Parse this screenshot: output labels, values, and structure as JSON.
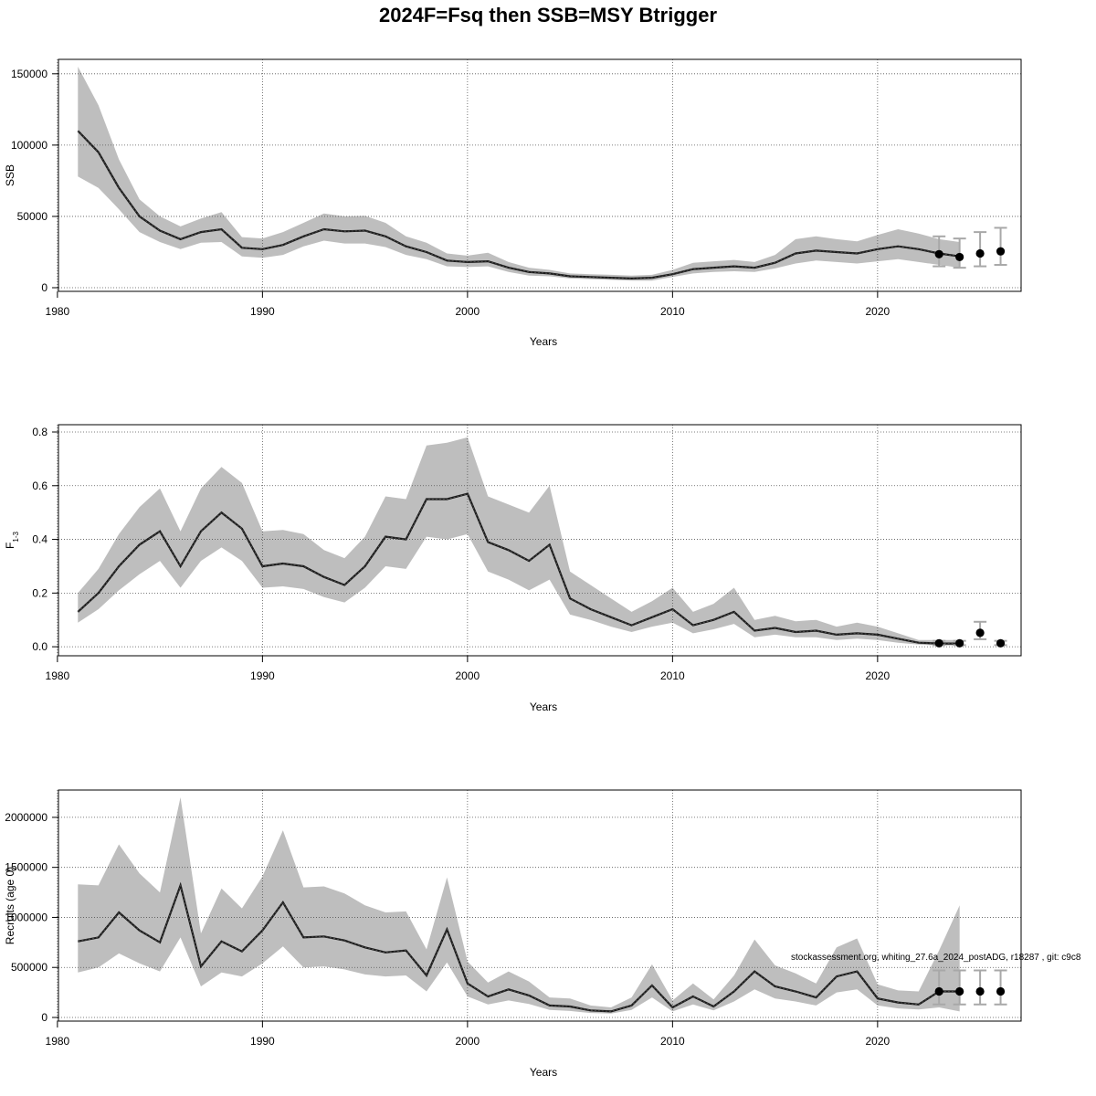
{
  "title": "2024F=Fsq then SSB=MSY Btrigger",
  "footnote": "stockassessment.org, whiting_27.6a_2024_postADG, r18287 , git: c9c8",
  "colors": {
    "band": "#bebebe",
    "line": "#1a1a1a",
    "grid": "#555555",
    "forecast_whisker": "#a8a8a8"
  },
  "chart_data": [
    {
      "type": "line",
      "ylabel": "SSB",
      "xlabel": "Years",
      "xlim": [
        1981,
        2026
      ],
      "ylim": [
        0,
        155000
      ],
      "xticks": [
        1980,
        1990,
        2000,
        2010,
        2020
      ],
      "yticks": [
        0,
        50000,
        100000,
        150000
      ],
      "grid": true,
      "x": [
        1981,
        1982,
        1983,
        1984,
        1985,
        1986,
        1987,
        1988,
        1989,
        1990,
        1991,
        1992,
        1993,
        1994,
        1995,
        1996,
        1997,
        1998,
        1999,
        2000,
        2001,
        2002,
        2003,
        2004,
        2005,
        2006,
        2007,
        2008,
        2009,
        2010,
        2011,
        2012,
        2013,
        2014,
        2015,
        2016,
        2017,
        2018,
        2019,
        2020,
        2021,
        2022,
        2023,
        2024
      ],
      "estimate": [
        110000,
        95000,
        70000,
        50000,
        40000,
        34000,
        39000,
        41000,
        28000,
        27000,
        30000,
        36000,
        41000,
        39500,
        40000,
        36000,
        29000,
        25000,
        19000,
        18000,
        18500,
        14000,
        11000,
        10000,
        8000,
        7500,
        7000,
        6500,
        7000,
        9500,
        13000,
        14000,
        15000,
        14000,
        17500,
        24000,
        26000,
        25000,
        24000,
        27000,
        29000,
        27000,
        24000,
        22000
      ],
      "lower": [
        78000,
        70000,
        55000,
        39000,
        32000,
        27000,
        31500,
        32000,
        22000,
        21000,
        23000,
        29000,
        33000,
        31000,
        31000,
        28500,
        23000,
        20000,
        15000,
        14500,
        15000,
        11000,
        8500,
        8000,
        6500,
        6000,
        5500,
        5000,
        5000,
        7500,
        10000,
        11000,
        11500,
        11000,
        13500,
        17000,
        19000,
        18000,
        17000,
        18500,
        20000,
        18000,
        16000,
        14000
      ],
      "upper": [
        155000,
        128000,
        90000,
        62000,
        50000,
        43000,
        48500,
        53000,
        35500,
        34500,
        39000,
        45500,
        52000,
        50000,
        50500,
        45500,
        36000,
        31500,
        24000,
        22500,
        24500,
        18000,
        14000,
        12500,
        10000,
        9500,
        9000,
        8500,
        9000,
        12500,
        17500,
        18500,
        19500,
        18000,
        23000,
        34000,
        36000,
        34000,
        32500,
        37000,
        41000,
        38000,
        34000,
        32000
      ],
      "forecast": [
        {
          "year": 2023,
          "value": 23500,
          "lower": 15000,
          "upper": 36000
        },
        {
          "year": 2024,
          "value": 21500,
          "lower": 14000,
          "upper": 34500
        },
        {
          "year": 2025,
          "value": 24000,
          "lower": 15000,
          "upper": 39000
        },
        {
          "year": 2026,
          "value": 25500,
          "lower": 16000,
          "upper": 42000
        }
      ]
    },
    {
      "type": "line",
      "ylabel": "F",
      "ylabel_subscript": "1-3",
      "xlabel": "Years",
      "xlim": [
        1981,
        2026
      ],
      "ylim": [
        -0.02,
        0.8
      ],
      "xticks": [
        1980,
        1990,
        2000,
        2010,
        2020
      ],
      "yticks": [
        "0.0",
        "0.2",
        "0.4",
        "0.6",
        "0.8"
      ],
      "grid": true,
      "x": [
        1981,
        1982,
        1983,
        1984,
        1985,
        1986,
        1987,
        1988,
        1989,
        1990,
        1991,
        1992,
        1993,
        1994,
        1995,
        1996,
        1997,
        1998,
        1999,
        2000,
        2001,
        2002,
        2003,
        2004,
        2005,
        2006,
        2007,
        2008,
        2009,
        2010,
        2011,
        2012,
        2013,
        2014,
        2015,
        2016,
        2017,
        2018,
        2019,
        2020,
        2021,
        2022,
        2023,
        2024
      ],
      "estimate": [
        0.13,
        0.2,
        0.3,
        0.38,
        0.43,
        0.3,
        0.43,
        0.5,
        0.44,
        0.3,
        0.31,
        0.3,
        0.26,
        0.23,
        0.3,
        0.41,
        0.4,
        0.55,
        0.55,
        0.57,
        0.39,
        0.36,
        0.32,
        0.38,
        0.18,
        0.14,
        0.11,
        0.08,
        0.11,
        0.14,
        0.08,
        0.1,
        0.13,
        0.06,
        0.07,
        0.055,
        0.06,
        0.045,
        0.05,
        0.045,
        0.03,
        0.015,
        0.012,
        0.012
      ],
      "lower": [
        0.09,
        0.14,
        0.21,
        0.27,
        0.32,
        0.22,
        0.32,
        0.37,
        0.32,
        0.22,
        0.225,
        0.215,
        0.185,
        0.165,
        0.22,
        0.3,
        0.29,
        0.41,
        0.4,
        0.42,
        0.28,
        0.25,
        0.21,
        0.25,
        0.12,
        0.1,
        0.075,
        0.055,
        0.075,
        0.09,
        0.05,
        0.065,
        0.085,
        0.035,
        0.045,
        0.035,
        0.035,
        0.025,
        0.03,
        0.025,
        0.015,
        0.008,
        0.005,
        0.005
      ],
      "upper": [
        0.2,
        0.29,
        0.42,
        0.52,
        0.59,
        0.43,
        0.59,
        0.67,
        0.61,
        0.43,
        0.435,
        0.42,
        0.36,
        0.33,
        0.41,
        0.56,
        0.55,
        0.75,
        0.76,
        0.78,
        0.56,
        0.53,
        0.5,
        0.6,
        0.28,
        0.23,
        0.18,
        0.13,
        0.17,
        0.22,
        0.13,
        0.16,
        0.22,
        0.1,
        0.115,
        0.095,
        0.1,
        0.075,
        0.09,
        0.075,
        0.05,
        0.025,
        0.025,
        0.025
      ],
      "forecast": [
        {
          "year": 2023,
          "value": 0.013,
          "lower": 0.006,
          "upper": 0.022
        },
        {
          "year": 2024,
          "value": 0.013,
          "lower": 0.006,
          "upper": 0.022
        },
        {
          "year": 2025,
          "value": 0.052,
          "lower": 0.028,
          "upper": 0.093
        },
        {
          "year": 2026,
          "value": 0.013,
          "lower": 0.006,
          "upper": 0.022
        }
      ]
    },
    {
      "type": "line",
      "ylabel": "Recruits (age 0)",
      "xlabel": "Years",
      "xlim": [
        1981,
        2026
      ],
      "ylim": [
        0,
        2200000
      ],
      "xticks": [
        1980,
        1990,
        2000,
        2010,
        2020
      ],
      "yticks": [
        0,
        500000,
        1000000,
        1500000,
        2000000
      ],
      "grid": true,
      "x": [
        1981,
        1982,
        1983,
        1984,
        1985,
        1986,
        1987,
        1988,
        1989,
        1990,
        1991,
        1992,
        1993,
        1994,
        1995,
        1996,
        1997,
        1998,
        1999,
        2000,
        2001,
        2002,
        2003,
        2004,
        2005,
        2006,
        2007,
        2008,
        2009,
        2010,
        2011,
        2012,
        2013,
        2014,
        2015,
        2016,
        2017,
        2018,
        2019,
        2020,
        2021,
        2022,
        2023,
        2024
      ],
      "estimate": [
        760000,
        800000,
        1050000,
        870000,
        750000,
        1320000,
        510000,
        760000,
        660000,
        870000,
        1150000,
        800000,
        810000,
        770000,
        700000,
        650000,
        670000,
        420000,
        880000,
        340000,
        210000,
        280000,
        220000,
        120000,
        110000,
        70000,
        60000,
        120000,
        320000,
        100000,
        210000,
        110000,
        260000,
        460000,
        310000,
        260000,
        200000,
        410000,
        460000,
        190000,
        150000,
        130000,
        260000,
        260000
      ],
      "lower": [
        450000,
        500000,
        640000,
        540000,
        460000,
        800000,
        310000,
        450000,
        410000,
        540000,
        710000,
        500000,
        510000,
        480000,
        430000,
        410000,
        420000,
        260000,
        550000,
        210000,
        130000,
        170000,
        135000,
        75000,
        65000,
        45000,
        38000,
        75000,
        200000,
        60000,
        130000,
        70000,
        160000,
        280000,
        190000,
        160000,
        120000,
        250000,
        280000,
        120000,
        90000,
        80000,
        100000,
        60000
      ],
      "upper": [
        1330000,
        1320000,
        1730000,
        1440000,
        1250000,
        2200000,
        840000,
        1290000,
        1090000,
        1410000,
        1870000,
        1300000,
        1310000,
        1240000,
        1120000,
        1050000,
        1060000,
        680000,
        1400000,
        560000,
        350000,
        460000,
        360000,
        200000,
        190000,
        120000,
        100000,
        200000,
        530000,
        170000,
        340000,
        180000,
        420000,
        780000,
        520000,
        440000,
        340000,
        700000,
        790000,
        330000,
        270000,
        260000,
        670000,
        1120000
      ],
      "forecast": [
        {
          "year": 2023,
          "value": 260000,
          "lower": 130000,
          "upper": 470000
        },
        {
          "year": 2024,
          "value": 260000,
          "lower": 130000,
          "upper": 470000
        },
        {
          "year": 2025,
          "value": 260000,
          "lower": 130000,
          "upper": 470000
        },
        {
          "year": 2026,
          "value": 260000,
          "lower": 130000,
          "upper": 470000
        }
      ]
    }
  ]
}
